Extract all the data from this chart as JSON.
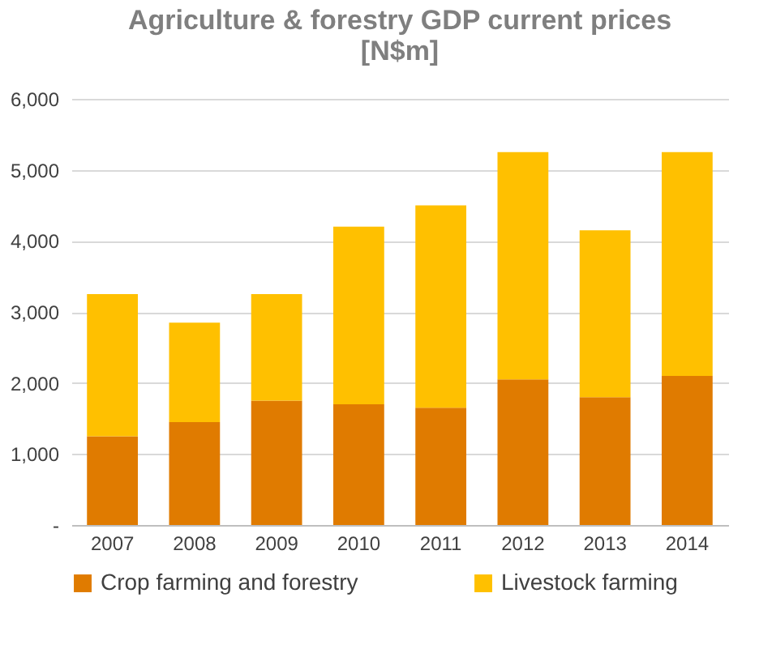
{
  "chart_data": {
    "type": "bar",
    "title": "Agriculture & forestry GDP current prices [N$m]",
    "categories": [
      "2007",
      "2008",
      "2009",
      "2010",
      "2011",
      "2012",
      "2013",
      "2014"
    ],
    "stacked": true,
    "series": [
      {
        "name": "Crop farming and forestry",
        "color": "#e07b00",
        "values": [
          1250,
          1450,
          1750,
          1700,
          1650,
          2050,
          1800,
          2100
        ]
      },
      {
        "name": "Livestock farming",
        "color": "#ffc000",
        "values": [
          2000,
          1400,
          1500,
          2500,
          2850,
          3200,
          2350,
          3150
        ]
      }
    ],
    "ylim": [
      0,
      6000
    ],
    "yticks": [
      {
        "value": 0,
        "label": "-"
      },
      {
        "value": 1000,
        "label": "1,000"
      },
      {
        "value": 2000,
        "label": "2,000"
      },
      {
        "value": 3000,
        "label": "3,000"
      },
      {
        "value": 4000,
        "label": "4,000"
      },
      {
        "value": 5000,
        "label": "5,000"
      },
      {
        "value": 6000,
        "label": "6,000"
      }
    ],
    "grid": "y",
    "legend": "bottom"
  }
}
